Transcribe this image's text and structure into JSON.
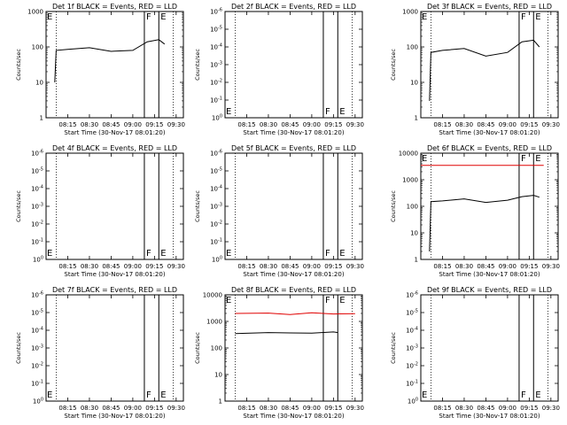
{
  "chart_data": [
    {
      "type": "line",
      "panel": 1,
      "title": "Det 1f BLACK = Events, RED = LLD",
      "ylabel": "Counts/sec",
      "xlabel": "Start Time (30-Nov-17 08:01:20)",
      "x_ticks": [
        "08:15",
        "08:30",
        "08:45",
        "09:00",
        "09:15",
        "09:30"
      ],
      "y_ticks": [
        "1",
        "10",
        "100",
        "1000"
      ],
      "ylim": [
        1,
        1000
      ],
      "scale": "log",
      "markers": [
        {
          "label": "F",
          "time": "09:08"
        },
        {
          "label": "E",
          "time": "09:18"
        }
      ],
      "series": [
        {
          "color": "black",
          "x": [
            "08:06",
            "08:07",
            "08:15",
            "08:30",
            "08:45",
            "09:00",
            "09:10",
            "09:18",
            "09:22"
          ],
          "y": [
            10,
            80,
            85,
            95,
            75,
            80,
            140,
            160,
            120
          ]
        }
      ]
    },
    {
      "type": "line",
      "panel": 2,
      "title": "Det 2f BLACK = Events, RED = LLD",
      "ylabel": "Counts/sec",
      "xlabel": "Start Time (30-Nov-17 08:01:20)",
      "x_ticks": [
        "08:15",
        "08:30",
        "08:45",
        "09:00",
        "09:15",
        "09:30"
      ],
      "y_ticks": [
        "10^0",
        "10^-1",
        "10^-2",
        "10^-3",
        "10^-4",
        "10^-5",
        "10^-6"
      ],
      "scale": "log",
      "markers": [
        {
          "label": "F",
          "time": "09:08"
        },
        {
          "label": "E",
          "time": "09:18"
        }
      ],
      "series": []
    },
    {
      "type": "line",
      "panel": 3,
      "title": "Det 3f BLACK = Events, RED = LLD",
      "ylabel": "Counts/sec",
      "xlabel": "Start Time (30-Nov-17 08:01:20)",
      "x_ticks": [
        "08:15",
        "08:30",
        "08:45",
        "09:00",
        "09:15",
        "09:30"
      ],
      "y_ticks": [
        "1",
        "10",
        "100",
        "1000"
      ],
      "ylim": [
        1,
        1000
      ],
      "scale": "log",
      "markers": [
        {
          "label": "F",
          "time": "09:08"
        },
        {
          "label": "E",
          "time": "09:18"
        }
      ],
      "series": [
        {
          "color": "black",
          "x": [
            "08:06",
            "08:07",
            "08:15",
            "08:30",
            "08:45",
            "09:00",
            "09:10",
            "09:18",
            "09:22"
          ],
          "y": [
            3,
            70,
            80,
            90,
            55,
            70,
            140,
            155,
            100
          ]
        }
      ]
    },
    {
      "type": "line",
      "panel": 4,
      "title": "Det 4f BLACK = Events, RED = LLD",
      "ylabel": "Counts/sec",
      "xlabel": "Start Time (30-Nov-17 08:01:20)",
      "x_ticks": [
        "08:15",
        "08:30",
        "08:45",
        "09:00",
        "09:15",
        "09:30"
      ],
      "y_ticks": [
        "10^0",
        "10^-1",
        "10^-2",
        "10^-3",
        "10^-4",
        "10^-5",
        "10^-6"
      ],
      "scale": "log",
      "markers": [
        {
          "label": "F",
          "time": "09:08"
        },
        {
          "label": "E",
          "time": "09:18"
        }
      ],
      "series": []
    },
    {
      "type": "line",
      "panel": 5,
      "title": "Det 5f BLACK = Events, RED = LLD",
      "ylabel": "Counts/sec",
      "xlabel": "Start Time (30-Nov-17 08:01:20)",
      "x_ticks": [
        "08:15",
        "08:30",
        "08:45",
        "09:00",
        "09:15",
        "09:30"
      ],
      "y_ticks": [
        "10^0",
        "10^-1",
        "10^-2",
        "10^-3",
        "10^-4",
        "10^-5",
        "10^-6"
      ],
      "scale": "log",
      "markers": [
        {
          "label": "F",
          "time": "09:08"
        },
        {
          "label": "E",
          "time": "09:18"
        }
      ],
      "series": []
    },
    {
      "type": "line",
      "panel": 6,
      "title": "Det 6f BLACK = Events, RED = LLD",
      "ylabel": "Counts/sec",
      "xlabel": "Start Time (30-Nov-17 08:01:20)",
      "x_ticks": [
        "08:15",
        "08:30",
        "08:45",
        "09:00",
        "09:15",
        "09:30"
      ],
      "y_ticks": [
        "1",
        "10",
        "100",
        "1000",
        "10000"
      ],
      "ylim": [
        1,
        10000
      ],
      "scale": "log",
      "markers": [
        {
          "label": "F",
          "time": "09:08"
        },
        {
          "label": "E",
          "time": "09:18"
        }
      ],
      "series": [
        {
          "color": "black",
          "x": [
            "08:06",
            "08:07",
            "08:15",
            "08:30",
            "08:45",
            "09:00",
            "09:10",
            "09:18",
            "09:22"
          ],
          "y": [
            2,
            150,
            160,
            190,
            140,
            170,
            230,
            260,
            220
          ]
        },
        {
          "color": "red",
          "x": [
            "08:00",
            "09:25"
          ],
          "y": [
            3500,
            3500
          ]
        }
      ]
    },
    {
      "type": "line",
      "panel": 7,
      "title": "Det 7f BLACK = Events, RED = LLD",
      "ylabel": "Counts/sec",
      "xlabel": "Start Time (30-Nov-17 08:01:20)",
      "x_ticks": [
        "08:15",
        "08:30",
        "08:45",
        "09:00",
        "09:15",
        "09:30"
      ],
      "y_ticks": [
        "10^0",
        "10^-1",
        "10^-2",
        "10^-3",
        "10^-4",
        "10^-5",
        "10^-6"
      ],
      "scale": "log",
      "markers": [
        {
          "label": "F",
          "time": "09:08"
        },
        {
          "label": "E",
          "time": "09:18"
        }
      ],
      "series": []
    },
    {
      "type": "line",
      "panel": 8,
      "title": "Det 8f BLACK = Events, RED = LLD",
      "ylabel": "Counts/sec",
      "xlabel": "Start Time (30-Nov-17 08:01:20)",
      "x_ticks": [
        "08:15",
        "08:30",
        "08:45",
        "09:00",
        "09:15",
        "09:30"
      ],
      "y_ticks": [
        "1",
        "10",
        "100",
        "1000",
        "10000"
      ],
      "ylim": [
        1,
        10000
      ],
      "scale": "log",
      "markers": [
        {
          "label": "F",
          "time": "09:08"
        },
        {
          "label": "E",
          "time": "09:18"
        }
      ],
      "series": [
        {
          "color": "black",
          "x": [
            "08:07",
            "08:30",
            "08:45",
            "09:00",
            "09:15",
            "09:18"
          ],
          "y": [
            350,
            380,
            370,
            360,
            400,
            380
          ]
        },
        {
          "color": "red",
          "x": [
            "08:07",
            "08:30",
            "08:45",
            "09:00",
            "09:15",
            "09:30"
          ],
          "y": [
            2000,
            2050,
            1800,
            2100,
            1900,
            1950
          ]
        }
      ]
    },
    {
      "type": "line",
      "panel": 9,
      "title": "Det 9f BLACK = Events, RED = LLD",
      "ylabel": "Counts/sec",
      "xlabel": "Start Time (30-Nov-17 08:01:20)",
      "x_ticks": [
        "08:15",
        "08:30",
        "08:45",
        "09:00",
        "09:15",
        "09:30"
      ],
      "y_ticks": [
        "10^0",
        "10^-1",
        "10^-2",
        "10^-3",
        "10^-4",
        "10^-5",
        "10^-6"
      ],
      "scale": "log",
      "markers": [
        {
          "label": "F",
          "time": "09:08"
        },
        {
          "label": "E",
          "time": "09:18"
        }
      ],
      "series": []
    }
  ]
}
